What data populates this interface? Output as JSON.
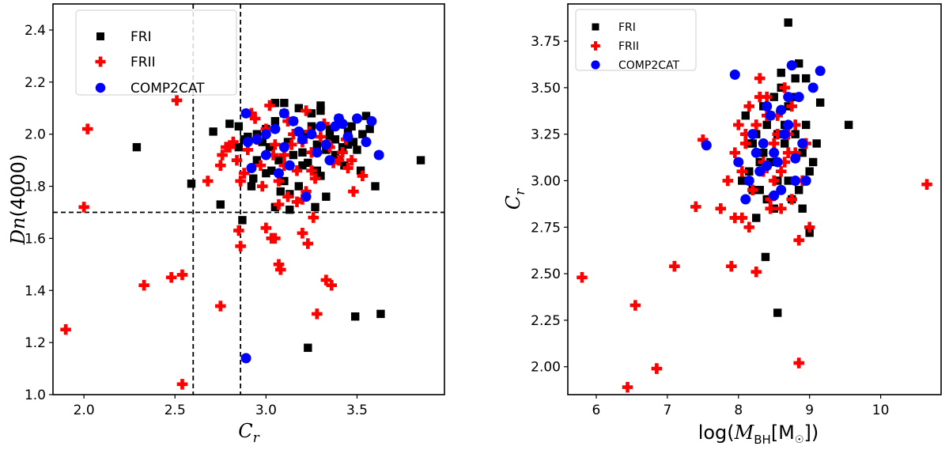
{
  "chart_data": [
    {
      "type": "scatter",
      "panel": "left",
      "xlabel": "C_r",
      "ylabel": "Dn(4000)",
      "xlim": [
        1.83,
        3.98
      ],
      "ylim": [
        1.0,
        2.5
      ],
      "xticks": [
        2.0,
        2.5,
        3.0,
        3.5
      ],
      "yticks": [
        1.0,
        1.2,
        1.4,
        1.6,
        1.8,
        2.0,
        2.2,
        2.4
      ],
      "xtick_labels": [
        "2.0",
        "2.5",
        "3.0",
        "3.5"
      ],
      "ytick_labels": [
        "1.0",
        "1.2",
        "1.4",
        "1.6",
        "1.8",
        "2.0",
        "2.2",
        "2.4"
      ],
      "reference_lines": {
        "vertical": [
          2.6,
          2.86
        ],
        "horizontal": [
          1.7
        ],
        "style": "dashed"
      },
      "legend": {
        "position": "top-left",
        "entries": [
          "FRI",
          "FRII",
          "COMP2CAT"
        ]
      },
      "series": [
        {
          "name": "FRI",
          "marker": "square",
          "color": "#000000",
          "x": [
            2.29,
            2.59,
            2.75,
            2.71,
            2.8,
            2.85,
            2.87,
            3.23,
            3.49,
            3.63,
            3.85,
            3.6,
            3.55,
            3.47,
            3.27,
            3.13,
            3.05,
            2.92,
            2.85,
            2.88,
            2.9,
            2.95,
            2.98,
            3.0,
            3.02,
            3.05,
            3.07,
            3.1,
            3.12,
            3.15,
            3.18,
            3.2,
            3.22,
            3.25,
            3.28,
            3.3,
            3.33,
            3.35,
            3.38,
            3.4,
            3.42,
            3.45,
            3.48,
            3.5,
            3.53,
            3.0,
            3.1,
            3.2,
            3.3,
            3.4,
            2.95,
            3.05,
            3.15,
            3.25,
            3.35,
            3.45,
            3.08,
            3.18,
            3.28,
            3.38,
            2.93,
            3.03,
            3.13,
            3.23,
            3.33,
            3.43,
            3.52,
            3.57,
            3.1,
            3.2,
            3.3
          ],
          "y": [
            1.95,
            1.81,
            1.73,
            2.01,
            2.04,
            2.03,
            1.67,
            1.18,
            1.3,
            1.31,
            1.9,
            1.8,
            2.07,
            2.03,
            1.72,
            1.71,
            1.72,
            1.8,
            1.95,
            1.98,
            1.99,
            2.0,
            1.97,
            2.02,
            1.95,
            2.12,
            1.9,
            2.12,
            1.97,
            2.05,
            2.1,
            1.93,
            2.0,
            2.08,
            1.96,
            2.11,
            1.94,
            2.02,
            1.98,
            2.06,
            1.95,
            2.01,
            1.97,
            1.94,
            2.0,
            1.85,
            1.82,
            1.88,
            1.84,
            1.9,
            1.9,
            2.05,
            1.92,
            2.03,
            1.99,
            1.96,
            1.78,
            1.8,
            1.86,
            1.92,
            1.83,
            1.86,
            1.77,
            1.89,
            1.76,
            1.88,
            1.86,
            2.02,
            2.08,
            1.99,
            2.09
          ]
        },
        {
          "name": "FRII",
          "marker": "plus",
          "color": "#ff0000",
          "x": [
            1.9,
            2.02,
            2.0,
            2.33,
            2.48,
            2.51,
            2.54,
            2.54,
            2.68,
            2.75,
            2.75,
            2.76,
            2.8,
            2.84,
            2.85,
            2.86,
            2.86,
            2.98,
            3.0,
            3.03,
            3.05,
            3.07,
            3.08,
            3.2,
            3.23,
            3.26,
            3.28,
            3.33,
            3.36,
            3.25,
            3.48,
            3.53,
            3.47,
            2.9,
            2.95,
            3.0,
            3.05,
            3.1,
            3.15,
            3.2,
            3.25,
            3.3,
            3.35,
            3.4,
            3.45,
            2.92,
            3.02,
            3.12,
            3.22,
            3.32,
            3.42,
            2.88,
            2.97,
            3.07,
            3.17,
            3.27,
            3.37,
            3.07,
            3.12,
            3.17,
            3.22,
            2.94,
            3.04,
            3.14,
            3.24,
            3.34,
            3.44,
            2.78,
            2.82,
            3.1,
            3.2
          ],
          "y": [
            1.25,
            2.02,
            1.72,
            1.42,
            1.45,
            2.13,
            1.46,
            1.04,
            1.82,
            1.34,
            1.88,
            1.92,
            1.95,
            1.9,
            1.63,
            1.57,
            1.82,
            1.8,
            1.64,
            1.6,
            1.6,
            1.5,
            1.48,
            1.62,
            1.58,
            1.68,
            1.31,
            1.44,
            1.42,
            1.86,
            1.78,
            1.84,
            1.9,
            1.94,
            1.98,
            2.02,
            1.96,
            1.92,
            2.0,
            1.97,
            1.93,
            1.99,
            1.95,
            1.9,
            1.87,
            2.08,
            2.11,
            2.05,
            2.09,
            2.04,
            1.93,
            1.85,
            1.88,
            1.82,
            1.86,
            1.83,
            1.89,
            1.73,
            1.76,
            1.74,
            1.78,
            2.06,
            1.92,
            1.96,
            2.01,
            1.96,
            1.98,
            1.95,
            1.97,
            1.88,
            1.75
          ]
        },
        {
          "name": "COMP2CAT",
          "marker": "circle",
          "color": "#0000ff",
          "x": [
            2.89,
            2.89,
            2.9,
            2.92,
            3.0,
            3.05,
            3.1,
            3.15,
            3.2,
            3.22,
            3.3,
            3.35,
            3.4,
            3.45,
            3.5,
            3.55,
            3.58,
            3.62,
            3.0,
            3.1,
            3.25,
            3.33,
            2.95,
            3.18,
            3.28,
            3.38,
            3.07,
            3.13,
            3.42
          ],
          "y": [
            1.14,
            2.08,
            1.97,
            1.87,
            2.0,
            2.02,
            1.95,
            2.05,
            1.98,
            1.76,
            2.03,
            1.9,
            2.06,
            1.99,
            2.06,
            1.97,
            2.05,
            1.92,
            1.92,
            2.08,
            2.0,
            1.96,
            1.98,
            2.01,
            1.93,
            2.03,
            1.85,
            1.88,
            2.04
          ]
        }
      ]
    },
    {
      "type": "scatter",
      "panel": "right",
      "xlabel": "log(M_BH[M☉])",
      "ylabel": "C_r",
      "xlim": [
        5.6,
        10.85
      ],
      "ylim": [
        1.85,
        3.95
      ],
      "xticks": [
        6,
        7,
        8,
        9,
        10
      ],
      "yticks": [
        2.0,
        2.25,
        2.5,
        2.75,
        3.0,
        3.25,
        3.5,
        3.75
      ],
      "xtick_labels": [
        "6",
        "7",
        "8",
        "9",
        "10"
      ],
      "ytick_labels": [
        "2.00",
        "2.25",
        "2.50",
        "2.75",
        "3.00",
        "3.25",
        "3.50",
        "3.75"
      ],
      "legend": {
        "position": "top-left",
        "entries": [
          "FRI",
          "FRII",
          "COMP2CAT"
        ]
      },
      "series": [
        {
          "name": "FRI",
          "marker": "square",
          "color": "#000000",
          "x": [
            8.7,
            8.55,
            8.38,
            9.55,
            9.15,
            8.85,
            8.1,
            8.2,
            8.3,
            8.4,
            8.5,
            8.6,
            8.7,
            8.8,
            8.9,
            9.0,
            9.1,
            8.15,
            8.25,
            8.35,
            8.45,
            8.55,
            8.65,
            8.75,
            8.85,
            8.95,
            9.05,
            8.05,
            8.6,
            8.8,
            8.4,
            8.5,
            8.3,
            8.7,
            8.9,
            9.0,
            8.2,
            8.45,
            8.65,
            8.75,
            8.35,
            8.55,
            8.95,
            8.25,
            8.15
          ],
          "y": [
            3.85,
            2.29,
            2.59,
            3.3,
            3.42,
            3.63,
            3.35,
            3.2,
            3.1,
            3.3,
            3.45,
            3.5,
            3.4,
            3.25,
            3.15,
            3.05,
            3.2,
            3.05,
            3.25,
            3.15,
            3.35,
            3.0,
            3.3,
            3.45,
            2.95,
            3.3,
            3.1,
            3.0,
            3.58,
            3.55,
            2.9,
            2.85,
            2.95,
            3.0,
            2.85,
            2.72,
            2.95,
            3.1,
            3.2,
            2.9,
            3.4,
            3.25,
            3.55,
            2.8,
            3.2
          ]
        },
        {
          "name": "FRII",
          "marker": "plus",
          "color": "#ff0000",
          "x": [
            5.8,
            6.44,
            6.55,
            6.85,
            7.1,
            7.4,
            7.5,
            7.75,
            7.9,
            8.25,
            8.85,
            10.65,
            7.85,
            7.95,
            8.05,
            8.1,
            8.15,
            8.2,
            8.25,
            8.3,
            8.35,
            8.4,
            8.45,
            8.5,
            8.55,
            8.6,
            8.65,
            8.7,
            8.75,
            8.8,
            8.85,
            8.9,
            8.95,
            9.0,
            8.05,
            8.15,
            8.35,
            8.45,
            8.55,
            8.65,
            8.75,
            8.0,
            8.2,
            8.4,
            8.6,
            8.8,
            8.3,
            8.5,
            8.7,
            7.95,
            8.1
          ],
          "y": [
            2.48,
            1.89,
            2.33,
            1.99,
            2.54,
            2.86,
            3.22,
            2.85,
            2.54,
            2.51,
            2.02,
            2.98,
            3.0,
            3.15,
            3.05,
            3.25,
            3.4,
            2.95,
            3.3,
            3.55,
            3.1,
            3.45,
            2.85,
            3.2,
            3.35,
            3.05,
            3.5,
            3.15,
            2.9,
            3.3,
            2.68,
            3.0,
            3.2,
            2.75,
            2.8,
            2.75,
            3.05,
            2.9,
            3.25,
            3.1,
            3.4,
            3.3,
            2.95,
            3.35,
            2.85,
            3.15,
            3.45,
            3.0,
            3.25,
            2.8,
            3.2
          ]
        },
        {
          "name": "COMP2CAT",
          "marker": "circle",
          "color": "#0000ff",
          "x": [
            7.55,
            7.95,
            8.0,
            8.1,
            8.2,
            8.3,
            8.4,
            8.5,
            8.6,
            8.7,
            8.75,
            8.8,
            8.85,
            8.9,
            9.05,
            9.15,
            8.15,
            8.35,
            8.45,
            8.55,
            8.65,
            8.95,
            8.25,
            8.5,
            8.7,
            8.4,
            8.6,
            8.8
          ],
          "y": [
            3.19,
            3.57,
            3.1,
            2.9,
            3.25,
            3.05,
            3.4,
            3.15,
            2.95,
            3.3,
            3.62,
            3.0,
            3.45,
            3.2,
            3.5,
            3.59,
            3.0,
            3.2,
            3.35,
            3.1,
            3.25,
            3.0,
            3.15,
            2.92,
            3.45,
            3.08,
            3.38,
            3.12
          ]
        }
      ]
    }
  ]
}
